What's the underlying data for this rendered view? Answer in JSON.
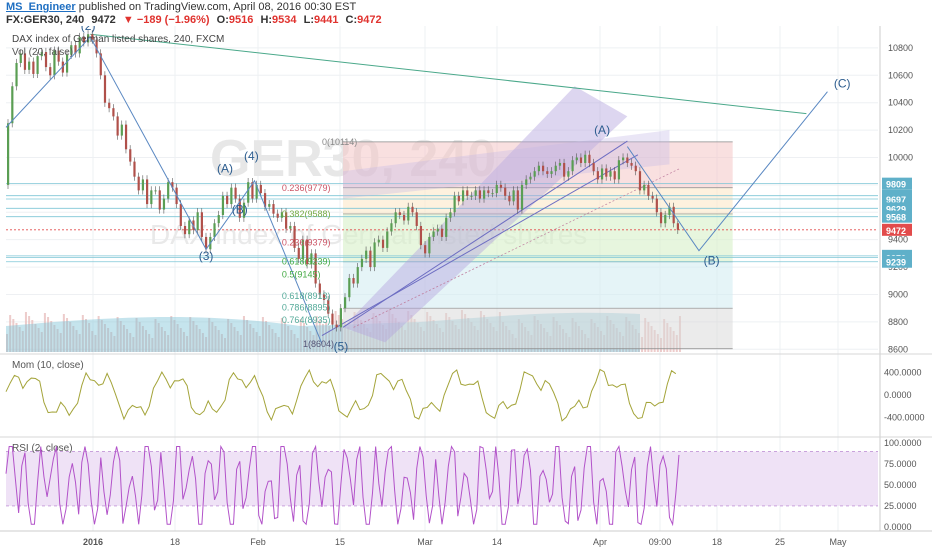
{
  "header": {
    "author": "MS_Engineer",
    "published": "published on TradingView.com, April 08, 2016 00:30 EST",
    "symbol_line": "FX:GER30, 240",
    "last": "9472",
    "change": "▼ −189 (−1.96%)",
    "o_label": "O:",
    "o": "9516",
    "h_label": "H:",
    "h": "9534",
    "l_label": "L:",
    "l": "9441",
    "c_label": "C:",
    "c": "9472"
  },
  "colors": {
    "up": "#5a9e53",
    "down": "#b0504a",
    "price_line": "#e24b4b",
    "momentum": "#a4a43a",
    "rsi": "#b252c9",
    "wave": "#5a88c2",
    "fib_red": "#f4c6c6",
    "fib_green": "#d7f0c8",
    "pitchfork": "#b3a3dd"
  },
  "chart_data": [
    {
      "type": "candlestick",
      "title": "DAX index of German listed shares, 240, FXCM",
      "subtitle": "Vol (20, false)",
      "watermark": "GER30, 240",
      "watermark_sub": "DAX index of German listed shares",
      "x_ticks": [
        "2016",
        "18",
        "Feb",
        "15",
        "Mar",
        "14",
        "Apr",
        "09:00",
        "18",
        "25",
        "May"
      ],
      "y_ticks": [
        8600,
        8800,
        9000,
        9200,
        9400,
        9600,
        9800,
        10000,
        10200,
        10400,
        10600,
        10800
      ],
      "ylim": [
        8580,
        10960
      ],
      "price_path": [
        [
          0,
          9800
        ],
        [
          4,
          10250
        ],
        [
          8,
          10520
        ],
        [
          12,
          10690
        ],
        [
          16,
          10760
        ],
        [
          20,
          10640
        ],
        [
          24,
          10700
        ],
        [
          28,
          10610
        ],
        [
          32,
          10740
        ],
        [
          36,
          10770
        ],
        [
          40,
          10660
        ],
        [
          44,
          10600
        ],
        [
          48,
          10780
        ],
        [
          52,
          10700
        ],
        [
          56,
          10620
        ],
        [
          60,
          10750
        ],
        [
          64,
          10820
        ],
        [
          68,
          10760
        ],
        [
          72,
          10880
        ],
        [
          76,
          10840
        ],
        [
          80,
          10900
        ],
        [
          84,
          10860
        ],
        [
          88,
          10760
        ],
        [
          92,
          10600
        ],
        [
          96,
          10400
        ],
        [
          100,
          10360
        ],
        [
          104,
          10300
        ],
        [
          108,
          10160
        ],
        [
          112,
          10240
        ],
        [
          116,
          10060
        ],
        [
          120,
          9970
        ],
        [
          124,
          9860
        ],
        [
          128,
          9760
        ],
        [
          132,
          9840
        ],
        [
          136,
          9660
        ],
        [
          140,
          9760
        ],
        [
          144,
          9760
        ],
        [
          148,
          9620
        ],
        [
          152,
          9700
        ],
        [
          156,
          9820
        ],
        [
          160,
          9780
        ],
        [
          164,
          9660
        ],
        [
          168,
          9500
        ],
        [
          172,
          9440
        ],
        [
          176,
          9540
        ],
        [
          180,
          9470
        ],
        [
          184,
          9600
        ],
        [
          188,
          9420
        ],
        [
          192,
          9330
        ],
        [
          196,
          9420
        ],
        [
          200,
          9520
        ],
        [
          204,
          9580
        ],
        [
          208,
          9720
        ],
        [
          212,
          9660
        ],
        [
          216,
          9780
        ],
        [
          220,
          9700
        ],
        [
          224,
          9560
        ],
        [
          228,
          9670
        ],
        [
          232,
          9820
        ],
        [
          236,
          9700
        ],
        [
          240,
          9800
        ],
        [
          244,
          9740
        ],
        [
          248,
          9640
        ],
        [
          252,
          9660
        ],
        [
          256,
          9590
        ],
        [
          260,
          9560
        ],
        [
          264,
          9600
        ],
        [
          268,
          9480
        ],
        [
          272,
          9500
        ],
        [
          276,
          9340
        ],
        [
          280,
          9260
        ],
        [
          284,
          9400
        ],
        [
          288,
          9220
        ],
        [
          292,
          9300
        ],
        [
          296,
          9080
        ],
        [
          300,
          9000
        ],
        [
          304,
          8960
        ],
        [
          308,
          8860
        ],
        [
          312,
          8780
        ],
        [
          316,
          8760
        ],
        [
          320,
          8900
        ],
        [
          324,
          8980
        ],
        [
          328,
          9120
        ],
        [
          332,
          9080
        ],
        [
          336,
          9200
        ],
        [
          340,
          9260
        ],
        [
          344,
          9320
        ],
        [
          348,
          9200
        ],
        [
          352,
          9380
        ],
        [
          356,
          9400
        ],
        [
          360,
          9340
        ],
        [
          364,
          9460
        ],
        [
          368,
          9520
        ],
        [
          372,
          9600
        ],
        [
          376,
          9580
        ],
        [
          380,
          9540
        ],
        [
          384,
          9640
        ],
        [
          388,
          9600
        ],
        [
          392,
          9500
        ],
        [
          396,
          9360
        ],
        [
          400,
          9300
        ],
        [
          404,
          9420
        ],
        [
          408,
          9460
        ],
        [
          412,
          9480
        ],
        [
          416,
          9420
        ],
        [
          420,
          9560
        ],
        [
          424,
          9600
        ],
        [
          428,
          9720
        ],
        [
          432,
          9680
        ],
        [
          436,
          9760
        ],
        [
          440,
          9720
        ],
        [
          444,
          9720
        ],
        [
          448,
          9760
        ],
        [
          452,
          9700
        ],
        [
          456,
          9760
        ],
        [
          460,
          9740
        ],
        [
          464,
          9740
        ],
        [
          468,
          9800
        ],
        [
          472,
          9780
        ],
        [
          476,
          9720
        ],
        [
          480,
          9680
        ],
        [
          484,
          9760
        ],
        [
          488,
          9620
        ],
        [
          492,
          9800
        ],
        [
          496,
          9840
        ],
        [
          500,
          9860
        ],
        [
          504,
          9900
        ],
        [
          508,
          9940
        ],
        [
          512,
          9900
        ],
        [
          516,
          9880
        ],
        [
          520,
          9900
        ],
        [
          524,
          9940
        ],
        [
          528,
          9960
        ],
        [
          532,
          9860
        ],
        [
          536,
          9900
        ],
        [
          540,
          9980
        ],
        [
          544,
          10000
        ],
        [
          548,
          9960
        ],
        [
          552,
          10020
        ],
        [
          556,
          9960
        ],
        [
          560,
          9900
        ],
        [
          564,
          9840
        ],
        [
          568,
          9920
        ],
        [
          572,
          9860
        ],
        [
          576,
          9900
        ],
        [
          580,
          9840
        ],
        [
          584,
          9980
        ],
        [
          588,
          10000
        ],
        [
          592,
          9960
        ],
        [
          596,
          9940
        ],
        [
          600,
          9900
        ],
        [
          604,
          9760
        ],
        [
          608,
          9800
        ],
        [
          612,
          9720
        ],
        [
          616,
          9700
        ],
        [
          620,
          9600
        ],
        [
          624,
          9520
        ],
        [
          628,
          9580
        ],
        [
          632,
          9640
        ],
        [
          636,
          9520
        ],
        [
          640,
          9472
        ]
      ],
      "badges": [
        {
          "value": "9809",
          "color": "#5fb0c9"
        },
        {
          "value": "9721",
          "color": "#5fb0c9"
        },
        {
          "value": "9697",
          "color": "#5fb0c9"
        },
        {
          "value": "9629",
          "color": "#5fb0c9"
        },
        {
          "value": "9568",
          "color": "#5fb0c9"
        },
        {
          "value": "9472",
          "color": "#e24b4b"
        },
        {
          "value": "9282",
          "color": "#5fb0c9"
        },
        {
          "value": "9270",
          "color": "#5fb0c9"
        },
        {
          "value": "9239",
          "color": "#5fb0c9"
        }
      ],
      "fib_labels": [
        {
          "text": "0(10114)",
          "value": 10114
        },
        {
          "text": "0.236(9779)",
          "value": 9779
        },
        {
          "text": "0.382(9588)",
          "value": 9588
        },
        {
          "text": "0.236(9379)",
          "value": 9379
        },
        {
          "text": "0.618(9239)",
          "value": 9239
        },
        {
          "text": "0.5(9145)",
          "value": 9145
        },
        {
          "text": "0.618(8913)",
          "value": 8913
        },
        {
          "text": "0.786(8895)",
          "value": 8895
        },
        {
          "text": "0.764(8935)",
          "value": 8935
        },
        {
          "text": "1(8604)",
          "value": 8604
        }
      ],
      "wave_labels": [
        "(2)",
        "(A)",
        "(4)",
        "(B)",
        "(3)",
        "(5)",
        "(A)",
        "(B)",
        "(C)"
      ]
    },
    {
      "type": "line",
      "title": "Mom (10, close)",
      "y_ticks": [
        "400.0000",
        "0.0000",
        "-400.0000"
      ],
      "ylim": [
        -700,
        700
      ]
    },
    {
      "type": "line",
      "title": "RSI (2, close)",
      "y_ticks": [
        "100.0000",
        "75.0000",
        "50.0000",
        "25.0000",
        "0.0000"
      ],
      "ylim": [
        -5,
        105
      ],
      "band": [
        25,
        90
      ]
    }
  ]
}
